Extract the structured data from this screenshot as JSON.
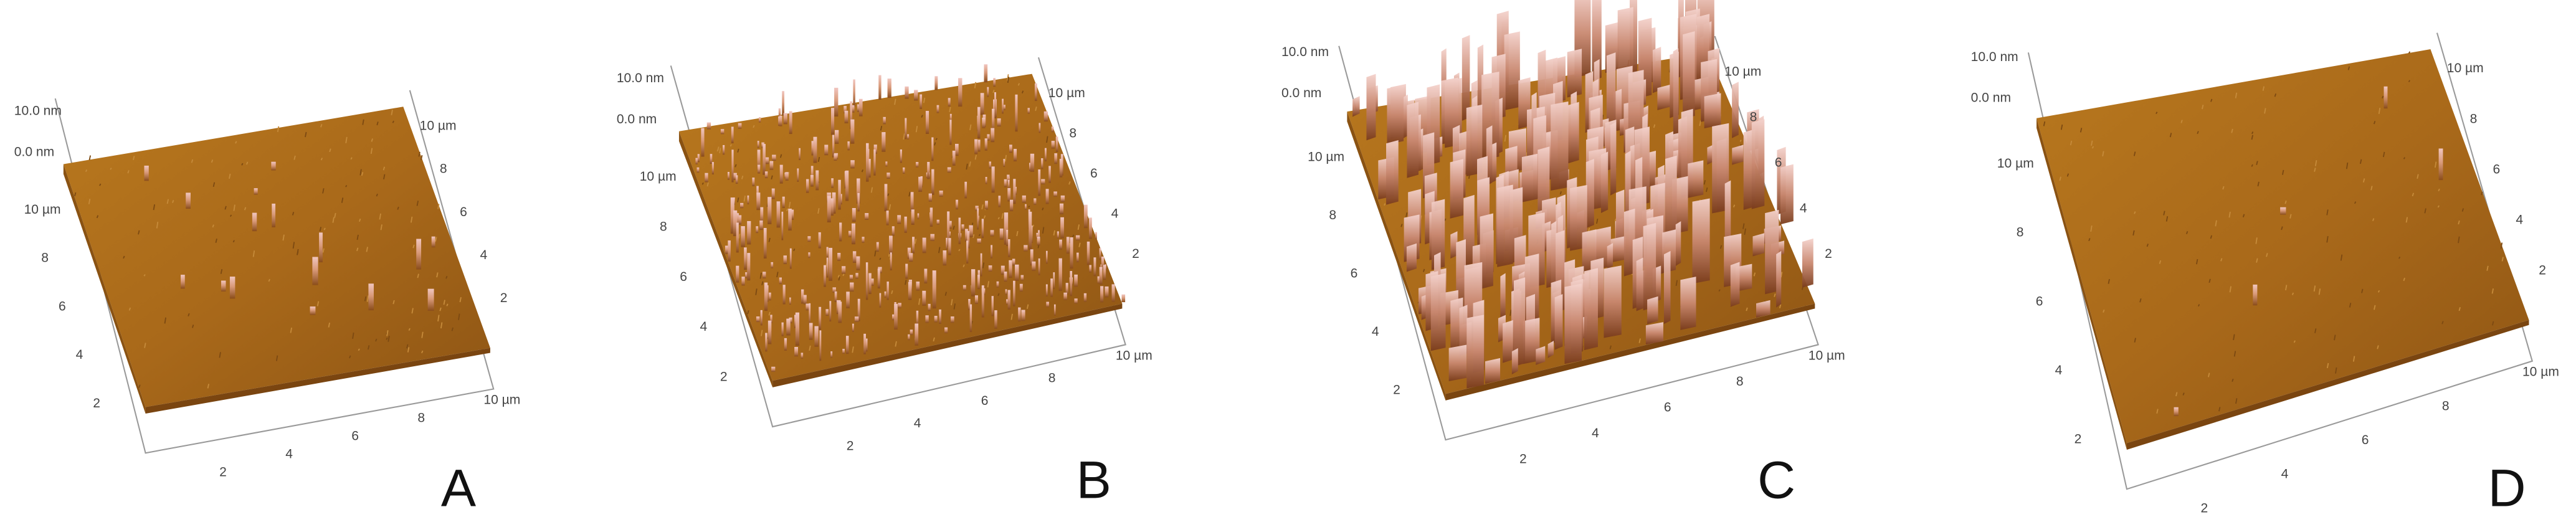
{
  "panels": [
    {
      "label": "A",
      "z_axis": [
        "10.0 nm",
        "0.0 nm"
      ],
      "left_axis": [
        "10 µm",
        "8",
        "6",
        "4",
        "2"
      ],
      "bottom_axis": [
        "2",
        "4",
        "6",
        "8",
        "10 µm"
      ],
      "right_axis": [
        "10 µm",
        "8",
        "6",
        "4",
        "2"
      ]
    },
    {
      "label": "B",
      "z_axis": [
        "10.0 nm",
        "0.0 nm"
      ],
      "left_axis": [
        "10 µm",
        "8",
        "6",
        "4",
        "2"
      ],
      "bottom_axis": [
        "2",
        "4",
        "6",
        "8",
        "10 µm"
      ],
      "right_axis": [
        "10 µm",
        "8",
        "6",
        "4",
        "2"
      ]
    },
    {
      "label": "C",
      "z_axis": [
        "10.0 nm",
        "0.0 nm"
      ],
      "left_axis": [
        "10 µm",
        "8",
        "6",
        "4",
        "2"
      ],
      "bottom_axis": [
        "2",
        "4",
        "6",
        "8",
        "10 µm"
      ],
      "right_axis": [
        "10 µm",
        "8",
        "6",
        "4",
        "2"
      ]
    },
    {
      "label": "D",
      "z_axis": [
        "10.0 nm",
        "0.0 nm"
      ],
      "left_axis": [
        "10 µm",
        "8",
        "6",
        "4",
        "2"
      ],
      "bottom_axis": [
        "2",
        "4",
        "6",
        "8",
        "10 µm"
      ],
      "right_axis": [
        "10 µm",
        "8",
        "6",
        "4",
        "2"
      ]
    }
  ]
}
